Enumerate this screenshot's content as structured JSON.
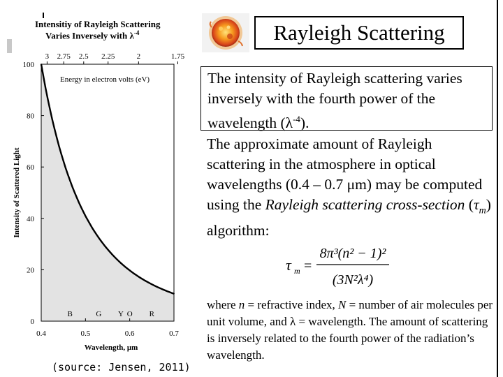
{
  "slide": {
    "title": "Rayleigh Scattering",
    "para1": {
      "pre": "The intensity of Rayleigh scattering varies inversely with the fourth power of the wavelength (",
      "lambda": "λ",
      "sup": "-4",
      "post": ")."
    },
    "para2": {
      "t1": "The approximate amount of Rayleigh scattering in the atmosphere in optical wavelengths (0.4 – 0.7 ",
      "mu": "μ",
      "t2": "m) may be computed using the ",
      "italic": "Rayleigh scattering cross-section",
      "t3": " (",
      "tau": "τ",
      "sub": "m",
      "t4": ") algorithm:"
    },
    "formula": {
      "lhs": "τ",
      "lhs_sub": "m",
      "equals": "=",
      "numerator": "8π³(n² − 1)²",
      "denominator": "(3N²λ⁴)"
    },
    "para3": {
      "t1": "where ",
      "n": "n",
      "t2": " = refractive index, ",
      "N": "N",
      "t3": " = number of air molecules per unit volume, and ",
      "lambda": "λ",
      "t4": " = wavelength. The amount of scattering is inversely related to the fourth power of the radiation’s wavelength."
    },
    "source": "(source: Jensen, 2011)"
  },
  "chart_data": {
    "type": "area",
    "title": "Intensitiy of Rayleigh Scattering",
    "subtitle_pre": "Varies Inversely with ",
    "subtitle_lambda": "λ",
    "subtitle_sup": "-4",
    "xlabel": "Wavelength, μm",
    "ylabel": "Intensity of Scattered Light",
    "top_axis_label": "Energy in electron volts (eV)",
    "xlim": [
      0.4,
      0.7
    ],
    "ylim": [
      0,
      100
    ],
    "x_ticks": [
      "0.4",
      "0.5",
      "0.6",
      "0.7"
    ],
    "y_ticks": [
      "0",
      "20",
      "40",
      "60",
      "80",
      "100"
    ],
    "top_ticks": [
      "3",
      "2.75",
      "2.5",
      "2.25",
      "2",
      "1.75"
    ],
    "top_tick_wavelengths": [
      0.4133,
      0.4509,
      0.496,
      0.5511,
      0.62,
      0.7086
    ],
    "color_bands": [
      "B",
      "G",
      "Y",
      "O",
      "R"
    ],
    "color_band_wavelengths": [
      0.465,
      0.53,
      0.58,
      0.6,
      0.65
    ],
    "series": [
      {
        "x": [
          0.4,
          0.42,
          0.44,
          0.46,
          0.48,
          0.5,
          0.52,
          0.54,
          0.56,
          0.58,
          0.6,
          0.62,
          0.64,
          0.66,
          0.68,
          0.7
        ],
        "y": [
          100,
          82.3,
          68.3,
          57.2,
          48.2,
          41.0,
          35.0,
          30.1,
          26.0,
          22.6,
          19.8,
          17.3,
          15.3,
          13.5,
          12.0,
          10.7
        ]
      }
    ],
    "grid": false
  },
  "colors": {
    "area_fill": "#e3e3e3",
    "curve": "#000000",
    "deco_bar": "#c8c8c8"
  },
  "images": {
    "sun": "sun-icon"
  }
}
